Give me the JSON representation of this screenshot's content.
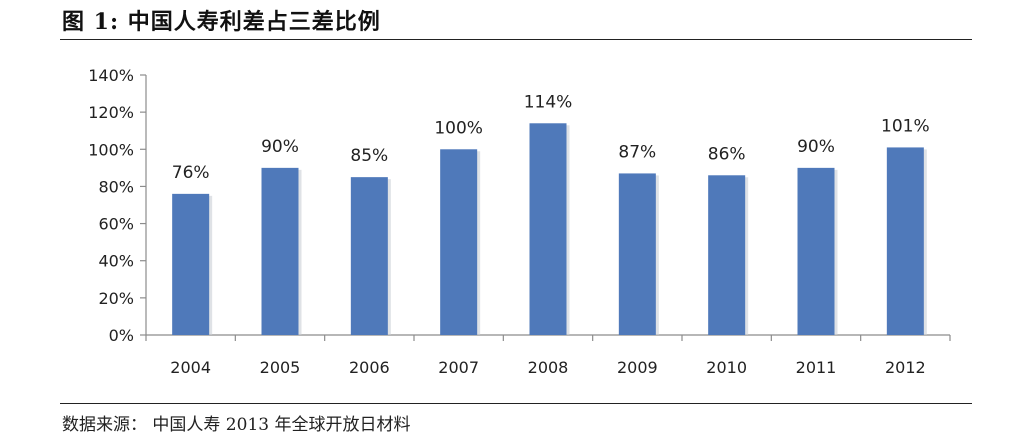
{
  "figure": {
    "title": "图 1:  中国人寿利差占三差比例",
    "source": "数据来源：  中国人寿 2013 年全球开放日材料"
  },
  "chart_data": {
    "type": "bar",
    "title": "",
    "xlabel": "",
    "ylabel": "",
    "categories": [
      "2004",
      "2005",
      "2006",
      "2007",
      "2008",
      "2009",
      "2010",
      "2011",
      "2012"
    ],
    "values": [
      76,
      90,
      85,
      100,
      114,
      87,
      86,
      90,
      101
    ],
    "data_labels": [
      "76%",
      "90%",
      "85%",
      "100%",
      "114%",
      "87%",
      "86%",
      "90%",
      "101%"
    ],
    "y_ticks": [
      0,
      20,
      40,
      60,
      80,
      100,
      120,
      140
    ],
    "y_tick_labels": [
      "0%",
      "20%",
      "40%",
      "60%",
      "80%",
      "100%",
      "120%",
      "140%"
    ],
    "ylim": [
      0,
      140
    ],
    "grid": false,
    "legend": "none",
    "bar_color": "#4F79BA",
    "axis_color": "#8C8C8C"
  }
}
